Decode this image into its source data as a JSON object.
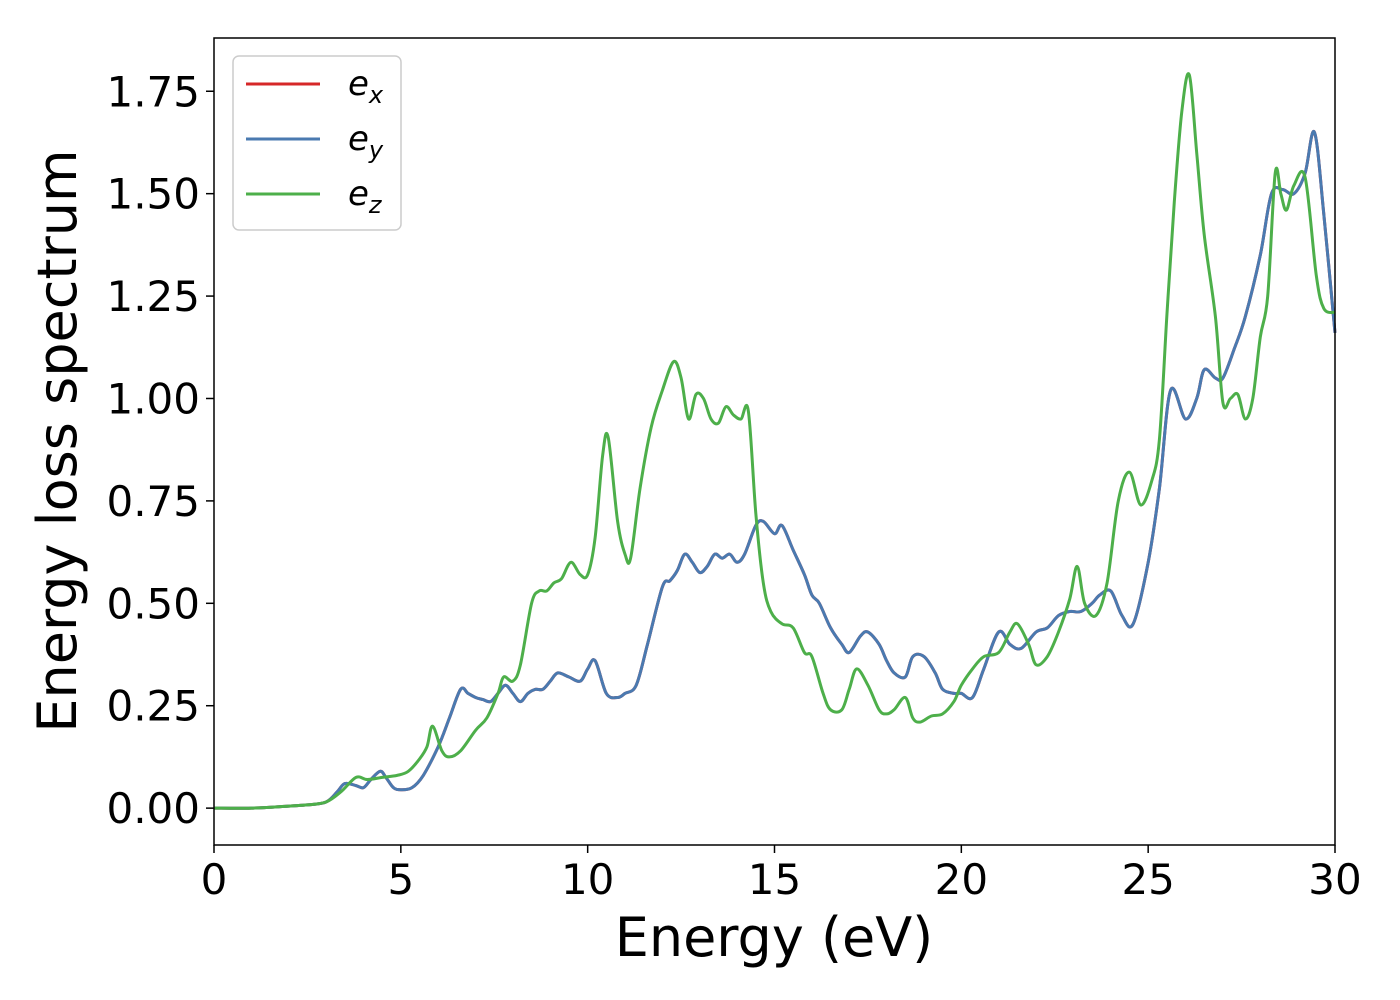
{
  "chart_data": {
    "type": "line",
    "title": "",
    "xlabel": "Energy (eV)",
    "ylabel": "Energy loss spectrum",
    "xlim": [
      0,
      30
    ],
    "ylim": [
      -0.09,
      1.88
    ],
    "xticks": [
      0,
      5,
      10,
      15,
      20,
      25,
      30
    ],
    "yticks": [
      0.0,
      0.25,
      0.5,
      0.75,
      1.0,
      1.25,
      1.5,
      1.75
    ],
    "ytick_labels": [
      "0.00",
      "0.25",
      "0.50",
      "0.75",
      "1.00",
      "1.25",
      "1.50",
      "1.75"
    ],
    "grid": false,
    "legend_position": "top-left",
    "series": [
      {
        "name": "e",
        "subscript": "x",
        "color": "#d62728",
        "x": [
          0,
          1,
          2,
          2.5,
          3,
          3.3,
          3.5,
          3.8,
          4,
          4.2,
          4.45,
          4.6,
          4.8,
          5,
          5.3,
          5.6,
          6,
          6.3,
          6.6,
          6.8,
          7,
          7.2,
          7.4,
          7.6,
          7.8,
          8,
          8.2,
          8.4,
          8.6,
          8.8,
          9,
          9.2,
          9.5,
          9.8,
          10,
          10.2,
          10.5,
          10.8,
          11,
          11.3,
          11.6,
          12,
          12.2,
          12.4,
          12.6,
          12.8,
          13,
          13.2,
          13.4,
          13.6,
          13.8,
          14,
          14.2,
          14.5,
          14.7,
          15,
          15.2,
          15.5,
          15.8,
          16,
          16.2,
          16.5,
          16.8,
          17,
          17.3,
          17.5,
          17.8,
          18,
          18.2,
          18.5,
          18.7,
          19,
          19.3,
          19.5,
          19.8,
          20,
          20.3,
          20.6,
          21,
          21.3,
          21.6,
          22,
          22.3,
          22.6,
          22.9,
          23.2,
          23.5,
          23.7,
          24,
          24.3,
          24.6,
          25,
          25.3,
          25.6,
          26,
          26.3,
          26.5,
          26.8,
          27,
          27.3,
          27.6,
          28,
          28.3,
          28.6,
          28.9,
          29.2,
          29.45,
          29.7,
          30
        ],
        "y": [
          0.0,
          0.0,
          0.005,
          0.008,
          0.015,
          0.04,
          0.06,
          0.055,
          0.05,
          0.07,
          0.09,
          0.075,
          0.05,
          0.045,
          0.05,
          0.08,
          0.15,
          0.22,
          0.29,
          0.28,
          0.27,
          0.265,
          0.26,
          0.28,
          0.3,
          0.28,
          0.26,
          0.28,
          0.29,
          0.29,
          0.31,
          0.33,
          0.32,
          0.31,
          0.34,
          0.36,
          0.28,
          0.27,
          0.28,
          0.3,
          0.4,
          0.54,
          0.555,
          0.58,
          0.62,
          0.6,
          0.575,
          0.59,
          0.62,
          0.61,
          0.62,
          0.6,
          0.62,
          0.69,
          0.7,
          0.67,
          0.69,
          0.63,
          0.57,
          0.52,
          0.5,
          0.44,
          0.4,
          0.38,
          0.42,
          0.43,
          0.4,
          0.36,
          0.33,
          0.32,
          0.37,
          0.37,
          0.33,
          0.29,
          0.28,
          0.28,
          0.27,
          0.34,
          0.43,
          0.4,
          0.39,
          0.43,
          0.44,
          0.47,
          0.48,
          0.48,
          0.5,
          0.52,
          0.53,
          0.47,
          0.45,
          0.6,
          0.78,
          1.02,
          0.95,
          1.0,
          1.07,
          1.05,
          1.05,
          1.12,
          1.2,
          1.35,
          1.5,
          1.51,
          1.5,
          1.55,
          1.65,
          1.45,
          1.16
        ]
      },
      {
        "name": "e",
        "subscript": "y",
        "color": "#4a7ab0",
        "x": [
          0,
          1,
          2,
          2.5,
          3,
          3.3,
          3.5,
          3.8,
          4,
          4.2,
          4.45,
          4.6,
          4.8,
          5,
          5.3,
          5.6,
          6,
          6.3,
          6.6,
          6.8,
          7,
          7.2,
          7.4,
          7.6,
          7.8,
          8,
          8.2,
          8.4,
          8.6,
          8.8,
          9,
          9.2,
          9.5,
          9.8,
          10,
          10.2,
          10.5,
          10.8,
          11,
          11.3,
          11.6,
          12,
          12.2,
          12.4,
          12.6,
          12.8,
          13,
          13.2,
          13.4,
          13.6,
          13.8,
          14,
          14.2,
          14.5,
          14.7,
          15,
          15.2,
          15.5,
          15.8,
          16,
          16.2,
          16.5,
          16.8,
          17,
          17.3,
          17.5,
          17.8,
          18,
          18.2,
          18.5,
          18.7,
          19,
          19.3,
          19.5,
          19.8,
          20,
          20.3,
          20.6,
          21,
          21.3,
          21.6,
          22,
          22.3,
          22.6,
          22.9,
          23.2,
          23.5,
          23.7,
          24,
          24.3,
          24.6,
          25,
          25.3,
          25.6,
          26,
          26.3,
          26.5,
          26.8,
          27,
          27.3,
          27.6,
          28,
          28.3,
          28.6,
          28.9,
          29.2,
          29.45,
          29.7,
          30
        ],
        "y": [
          0.0,
          0.0,
          0.005,
          0.008,
          0.015,
          0.04,
          0.06,
          0.055,
          0.05,
          0.07,
          0.09,
          0.075,
          0.05,
          0.045,
          0.05,
          0.08,
          0.15,
          0.22,
          0.29,
          0.28,
          0.27,
          0.265,
          0.26,
          0.28,
          0.3,
          0.28,
          0.26,
          0.28,
          0.29,
          0.29,
          0.31,
          0.33,
          0.32,
          0.31,
          0.34,
          0.36,
          0.28,
          0.27,
          0.28,
          0.3,
          0.4,
          0.54,
          0.555,
          0.58,
          0.62,
          0.6,
          0.575,
          0.59,
          0.62,
          0.61,
          0.62,
          0.6,
          0.62,
          0.69,
          0.7,
          0.67,
          0.69,
          0.63,
          0.57,
          0.52,
          0.5,
          0.44,
          0.4,
          0.38,
          0.42,
          0.43,
          0.4,
          0.36,
          0.33,
          0.32,
          0.37,
          0.37,
          0.33,
          0.29,
          0.28,
          0.28,
          0.27,
          0.34,
          0.43,
          0.4,
          0.39,
          0.43,
          0.44,
          0.47,
          0.48,
          0.48,
          0.5,
          0.52,
          0.53,
          0.47,
          0.45,
          0.6,
          0.78,
          1.02,
          0.95,
          1.0,
          1.07,
          1.05,
          1.05,
          1.12,
          1.2,
          1.35,
          1.5,
          1.51,
          1.5,
          1.55,
          1.65,
          1.45,
          1.16
        ]
      },
      {
        "name": "e",
        "subscript": "z",
        "color": "#4daf4a",
        "x": [
          0,
          1,
          2,
          2.5,
          3,
          3.4,
          3.8,
          4.1,
          4.5,
          4.9,
          5.2,
          5.5,
          5.7,
          5.85,
          6.1,
          6.3,
          6.6,
          7,
          7.3,
          7.6,
          7.75,
          8,
          8.2,
          8.5,
          8.7,
          8.9,
          9.1,
          9.3,
          9.55,
          9.8,
          10,
          10.2,
          10.4,
          10.55,
          10.8,
          11,
          11.15,
          11.4,
          11.7,
          12,
          12.3,
          12.5,
          12.7,
          12.9,
          13.1,
          13.3,
          13.5,
          13.7,
          13.9,
          14.1,
          14.3,
          14.5,
          14.7,
          14.9,
          15.2,
          15.5,
          15.8,
          16,
          16.3,
          16.5,
          16.8,
          17,
          17.2,
          17.5,
          17.8,
          18,
          18.2,
          18.5,
          18.7,
          18.9,
          19.2,
          19.5,
          19.8,
          20,
          20.3,
          20.6,
          21,
          21.3,
          21.5,
          21.8,
          22,
          22.3,
          22.6,
          22.9,
          23.1,
          23.3,
          23.6,
          23.9,
          24.2,
          24.5,
          24.8,
          25.1,
          25.3,
          25.5,
          25.7,
          25.9,
          26.1,
          26.3,
          26.5,
          26.8,
          27,
          27.2,
          27.4,
          27.6,
          27.8,
          28,
          28.2,
          28.4,
          28.55,
          28.7,
          28.9,
          29.2,
          29.5,
          29.7,
          30
        ],
        "y": [
          0.0,
          0.0,
          0.005,
          0.008,
          0.015,
          0.04,
          0.075,
          0.07,
          0.075,
          0.08,
          0.09,
          0.12,
          0.15,
          0.2,
          0.14,
          0.125,
          0.14,
          0.19,
          0.22,
          0.28,
          0.32,
          0.31,
          0.35,
          0.5,
          0.53,
          0.53,
          0.55,
          0.56,
          0.6,
          0.57,
          0.57,
          0.66,
          0.86,
          0.905,
          0.7,
          0.62,
          0.61,
          0.78,
          0.93,
          1.02,
          1.09,
          1.05,
          0.95,
          1.01,
          1.0,
          0.95,
          0.94,
          0.98,
          0.96,
          0.95,
          0.97,
          0.72,
          0.55,
          0.48,
          0.45,
          0.44,
          0.38,
          0.37,
          0.28,
          0.24,
          0.24,
          0.29,
          0.34,
          0.3,
          0.24,
          0.23,
          0.24,
          0.27,
          0.22,
          0.21,
          0.225,
          0.23,
          0.26,
          0.3,
          0.34,
          0.37,
          0.38,
          0.43,
          0.45,
          0.4,
          0.35,
          0.37,
          0.43,
          0.51,
          0.59,
          0.5,
          0.47,
          0.55,
          0.75,
          0.82,
          0.74,
          0.8,
          0.9,
          1.2,
          1.48,
          1.7,
          1.79,
          1.6,
          1.4,
          1.2,
          0.99,
          1.0,
          1.01,
          0.95,
          1.0,
          1.15,
          1.25,
          1.55,
          1.5,
          1.46,
          1.52,
          1.54,
          1.3,
          1.22,
          1.21
        ]
      }
    ]
  }
}
